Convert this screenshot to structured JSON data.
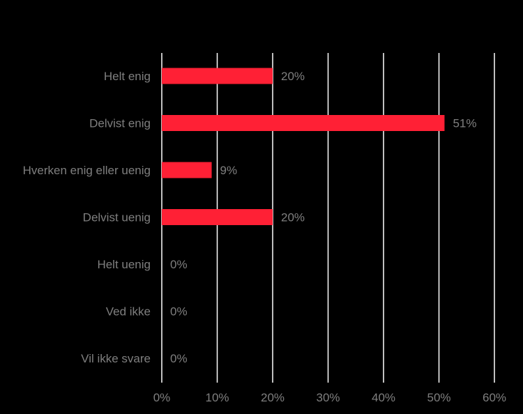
{
  "colors": {
    "background": "#000000",
    "bar": "#ff2035",
    "gridline": "#ffffff",
    "text": "#7f7f7f"
  },
  "chart_data": {
    "type": "bar",
    "orientation": "horizontal",
    "categories": [
      "Helt enig",
      "Delvist enig",
      "Hverken enig eller uenig",
      "Delvist uenig",
      "Helt uenig",
      "Ved ikke",
      "Vil ikke svare"
    ],
    "values": [
      20,
      51,
      9,
      20,
      0,
      0,
      0
    ],
    "value_labels": [
      "20%",
      "51%",
      "9%",
      "20%",
      "0%",
      "0%",
      "0%"
    ],
    "xlim": [
      0,
      60
    ],
    "x_ticks": [
      0,
      10,
      20,
      30,
      40,
      50,
      60
    ],
    "x_tick_labels": [
      "0%",
      "10%",
      "20%",
      "30%",
      "40%",
      "50%",
      "60%"
    ],
    "grid": "vertical",
    "legend": "none"
  }
}
